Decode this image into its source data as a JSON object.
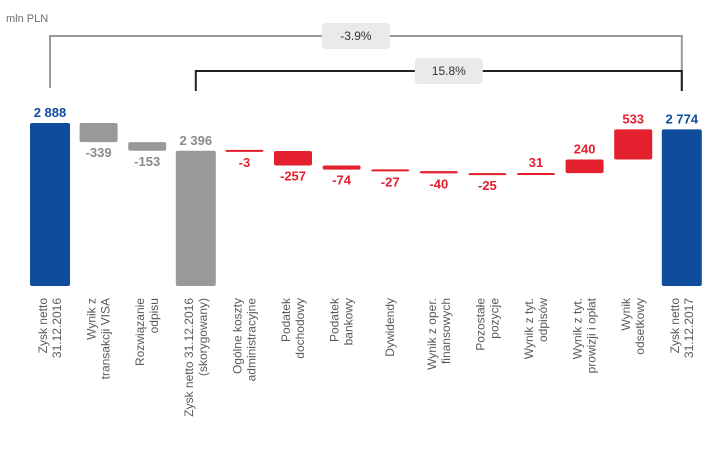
{
  "chart_data": {
    "type": "waterfall",
    "unit_label": "mln PLN",
    "colors": {
      "total": "#0f4c9c",
      "adjustment": "#999999",
      "change": "#e4202f",
      "bracket": "#999999",
      "bracket_dark": "#222222",
      "badge": "#e9ebeb"
    },
    "bars": [
      {
        "label": [
          "Zysk netto",
          "31.12.2016"
        ],
        "value": 2888,
        "display": "2 888",
        "kind": "total"
      },
      {
        "label": [
          "Wynik z",
          "transakcji VISA"
        ],
        "value": -339,
        "display": "-339",
        "kind": "adjustment"
      },
      {
        "label": [
          "Rozwiązanie",
          "odpisu"
        ],
        "value": -153,
        "display": "-153",
        "kind": "adjustment"
      },
      {
        "label": [
          "Zysk netto 31.12.2016",
          "(skorygowany)"
        ],
        "value": 2396,
        "display": "2 396",
        "kind": "subtotal"
      },
      {
        "label": [
          "Ogólne koszty",
          "administracyjne"
        ],
        "value": -3,
        "display": "-3",
        "kind": "change"
      },
      {
        "label": [
          "Podatek",
          "dochodowy"
        ],
        "value": -257,
        "display": "-257",
        "kind": "change"
      },
      {
        "label": [
          "Podatek",
          "bankowy"
        ],
        "value": -74,
        "display": "-74",
        "kind": "change"
      },
      {
        "label": [
          "Dywidendy"
        ],
        "value": -27,
        "display": "-27",
        "kind": "change"
      },
      {
        "label": [
          "Wynik z oper.",
          "finansowych"
        ],
        "value": -40,
        "display": "-40",
        "kind": "change"
      },
      {
        "label": [
          "Pozostałe",
          "pozycje"
        ],
        "value": -25,
        "display": "-25",
        "kind": "change"
      },
      {
        "label": [
          "Wynik z tyt.",
          "odpisów"
        ],
        "value": 31,
        "display": "31",
        "kind": "change"
      },
      {
        "label": [
          "Wynik z tyt.",
          "prowizji i opłat"
        ],
        "value": 240,
        "display": "240",
        "kind": "change"
      },
      {
        "label": [
          "Wynik",
          "odsetkowy"
        ],
        "value": 533,
        "display": "533",
        "kind": "change"
      },
      {
        "label": [
          "Zysk netto",
          "31.12.2017"
        ],
        "value": 2774,
        "display": "2 774",
        "kind": "total"
      }
    ],
    "comparisons": [
      {
        "from": 0,
        "to": 13,
        "label": "-3.9%"
      },
      {
        "from": 3,
        "to": 13,
        "label": "15.8%"
      }
    ]
  }
}
